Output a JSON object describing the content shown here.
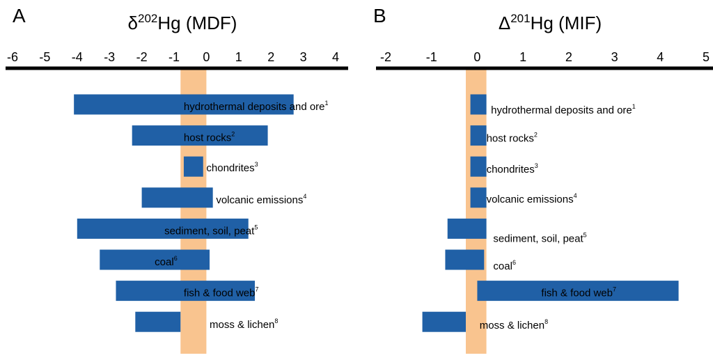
{
  "colors": {
    "bar": "#2060a6",
    "band": "#f9c48f",
    "axis": "#000000",
    "text": "#000000"
  },
  "chart_data": [
    {
      "type": "bar",
      "orientation": "horizontal",
      "panel_letter": "A",
      "title": "δ202Hg (MDF)",
      "title_parts": {
        "symbol": "δ",
        "superscript": "202",
        "rest": "Hg (MDF)"
      },
      "xlim": [
        -6,
        4
      ],
      "xticks": [
        "-6",
        "-5",
        "-4",
        "-3",
        "-2",
        "-1",
        "0",
        "1",
        "2",
        "3",
        "4"
      ],
      "band": {
        "range": [
          -0.8,
          0
        ]
      },
      "categories": [
        {
          "label": "hydrothermal deposits and ore",
          "sup": "1",
          "range": [
            -4.1,
            2.7
          ],
          "label_at": -0.7
        },
        {
          "label": "host rocks",
          "sup": "2",
          "range": [
            -2.3,
            1.9
          ],
          "label_at": -0.7
        },
        {
          "label": "chondrites",
          "sup": "3",
          "range": [
            -0.7,
            -0.1
          ],
          "label_at": 0.0
        },
        {
          "label": "volcanic emissions",
          "sup": "4",
          "range": [
            -2.0,
            0.2
          ],
          "label_at": 0.3
        },
        {
          "label": "sediment, soil, peat",
          "sup": "5",
          "range": [
            -4.0,
            1.3
          ],
          "label_at": -1.3
        },
        {
          "label": "coal",
          "sup": "6",
          "range": [
            -3.3,
            0.1
          ],
          "label_at": -1.6
        },
        {
          "label": "fish & food web",
          "sup": "7",
          "range": [
            -2.8,
            1.5
          ],
          "label_at": -0.7
        },
        {
          "label": "moss & lichen",
          "sup": "8",
          "range": [
            -2.2,
            -0.8
          ],
          "label_at": 0.1
        }
      ]
    },
    {
      "type": "bar",
      "orientation": "horizontal",
      "panel_letter": "B",
      "title": "Δ201Hg (MIF)",
      "title_parts": {
        "symbol": "Δ",
        "superscript": "201",
        "rest": "Hg (MIF)"
      },
      "xlim": [
        -2,
        5
      ],
      "xticks": [
        "-2",
        "-1",
        "0",
        "1",
        "2",
        "3",
        "4",
        "5"
      ],
      "band": {
        "range": [
          -0.25,
          0.2
        ]
      },
      "categories": [
        {
          "label": "hydrothermal deposits and ore",
          "sup": "1",
          "range": [
            -0.15,
            0.2
          ],
          "label_at": 0.3
        },
        {
          "label": "host rocks",
          "sup": "2",
          "range": [
            -0.15,
            0.2
          ],
          "label_at": 0.2
        },
        {
          "label": "chondrites",
          "sup": "3",
          "range": [
            -0.15,
            0.2
          ],
          "label_at": 0.2
        },
        {
          "label": "volcanic emissions",
          "sup": "4",
          "range": [
            -0.15,
            0.2
          ],
          "label_at": 0.2
        },
        {
          "label": "sediment, soil, peat",
          "sup": "5",
          "range": [
            -0.65,
            0.2
          ],
          "label_at": 0.35
        },
        {
          "label": "coal",
          "sup": "6",
          "range": [
            -0.7,
            0.15
          ],
          "label_at": 0.35
        },
        {
          "label": "fish & food web",
          "sup": "7",
          "range": [
            0.0,
            4.4
          ],
          "label_at": 1.4
        },
        {
          "label": "moss & lichen",
          "sup": "8",
          "range": [
            -1.2,
            -0.25
          ],
          "label_at": 0.05
        }
      ]
    }
  ]
}
